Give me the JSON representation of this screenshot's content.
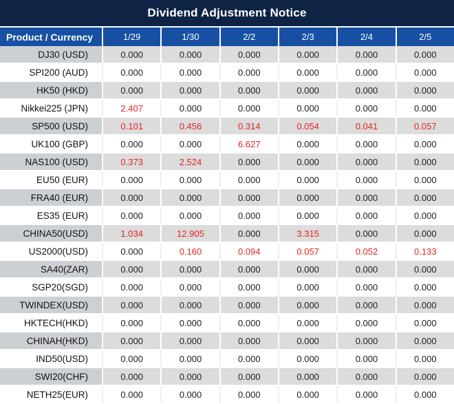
{
  "title": "Dividend Adjustment Notice",
  "colors": {
    "title_bg": "#0f2344",
    "header_bg": "#1750a3",
    "row_gray_product": "#ccd0d5",
    "row_gray_data": "#dcdcdc",
    "row_white": "#ffffff",
    "highlight_red": "#e22421",
    "text_dark": "#1c1c1c"
  },
  "table": {
    "product_header": "Product / Currency",
    "date_headers": [
      "1/29",
      "1/30",
      "2/2",
      "2/3",
      "2/4",
      "2/5"
    ],
    "zero_value": "0.000",
    "rows": [
      {
        "product": "DJ30 (USD)",
        "values": [
          "0.000",
          "0.000",
          "0.000",
          "0.000",
          "0.000",
          "0.000"
        ]
      },
      {
        "product": "SPI200 (AUD)",
        "values": [
          "0.000",
          "0.000",
          "0.000",
          "0.000",
          "0.000",
          "0.000"
        ]
      },
      {
        "product": "HK50 (HKD)",
        "values": [
          "0.000",
          "0.000",
          "0.000",
          "0.000",
          "0.000",
          "0.000"
        ]
      },
      {
        "product": "Nikkei225 (JPN)",
        "values": [
          "2.407",
          "0.000",
          "0.000",
          "0.000",
          "0.000",
          "0.000"
        ]
      },
      {
        "product": "SP500 (USD)",
        "values": [
          "0.101",
          "0.456",
          "0.314",
          "0.054",
          "0.041",
          "0.057"
        ]
      },
      {
        "product": "UK100 (GBP)",
        "values": [
          "0.000",
          "0.000",
          "6.627",
          "0.000",
          "0.000",
          "0.000"
        ]
      },
      {
        "product": "NAS100 (USD)",
        "values": [
          "0.373",
          "2.524",
          "0.000",
          "0.000",
          "0.000",
          "0.000"
        ]
      },
      {
        "product": "EU50 (EUR)",
        "values": [
          "0.000",
          "0.000",
          "0.000",
          "0.000",
          "0.000",
          "0.000"
        ]
      },
      {
        "product": "FRA40 (EUR)",
        "values": [
          "0.000",
          "0.000",
          "0.000",
          "0.000",
          "0.000",
          "0.000"
        ]
      },
      {
        "product": "ES35 (EUR)",
        "values": [
          "0.000",
          "0.000",
          "0.000",
          "0.000",
          "0.000",
          "0.000"
        ]
      },
      {
        "product": "CHINA50(USD)",
        "values": [
          "1.034",
          "12.905",
          "0.000",
          "3.315",
          "0.000",
          "0.000"
        ]
      },
      {
        "product": "US2000(USD)",
        "values": [
          "0.000",
          "0.160",
          "0.094",
          "0.057",
          "0.052",
          "0.133"
        ]
      },
      {
        "product": "SA40(ZAR)",
        "values": [
          "0.000",
          "0.000",
          "0.000",
          "0.000",
          "0.000",
          "0.000"
        ]
      },
      {
        "product": "SGP20(SGD)",
        "values": [
          "0.000",
          "0.000",
          "0.000",
          "0.000",
          "0.000",
          "0.000"
        ]
      },
      {
        "product": "TWINDEX(USD)",
        "values": [
          "0.000",
          "0.000",
          "0.000",
          "0.000",
          "0.000",
          "0.000"
        ]
      },
      {
        "product": "HKTECH(HKD)",
        "values": [
          "0.000",
          "0.000",
          "0.000",
          "0.000",
          "0.000",
          "0.000"
        ]
      },
      {
        "product": "CHINAH(HKD)",
        "values": [
          "0.000",
          "0.000",
          "0.000",
          "0.000",
          "0.000",
          "0.000"
        ]
      },
      {
        "product": "IND50(USD)",
        "values": [
          "0.000",
          "0.000",
          "0.000",
          "0.000",
          "0.000",
          "0.000"
        ]
      },
      {
        "product": "SWI20(CHF)",
        "values": [
          "0.000",
          "0.000",
          "0.000",
          "0.000",
          "0.000",
          "0.000"
        ]
      },
      {
        "product": "NETH25(EUR)",
        "values": [
          "0.000",
          "0.000",
          "0.000",
          "0.000",
          "0.000",
          "0.000"
        ]
      }
    ]
  }
}
